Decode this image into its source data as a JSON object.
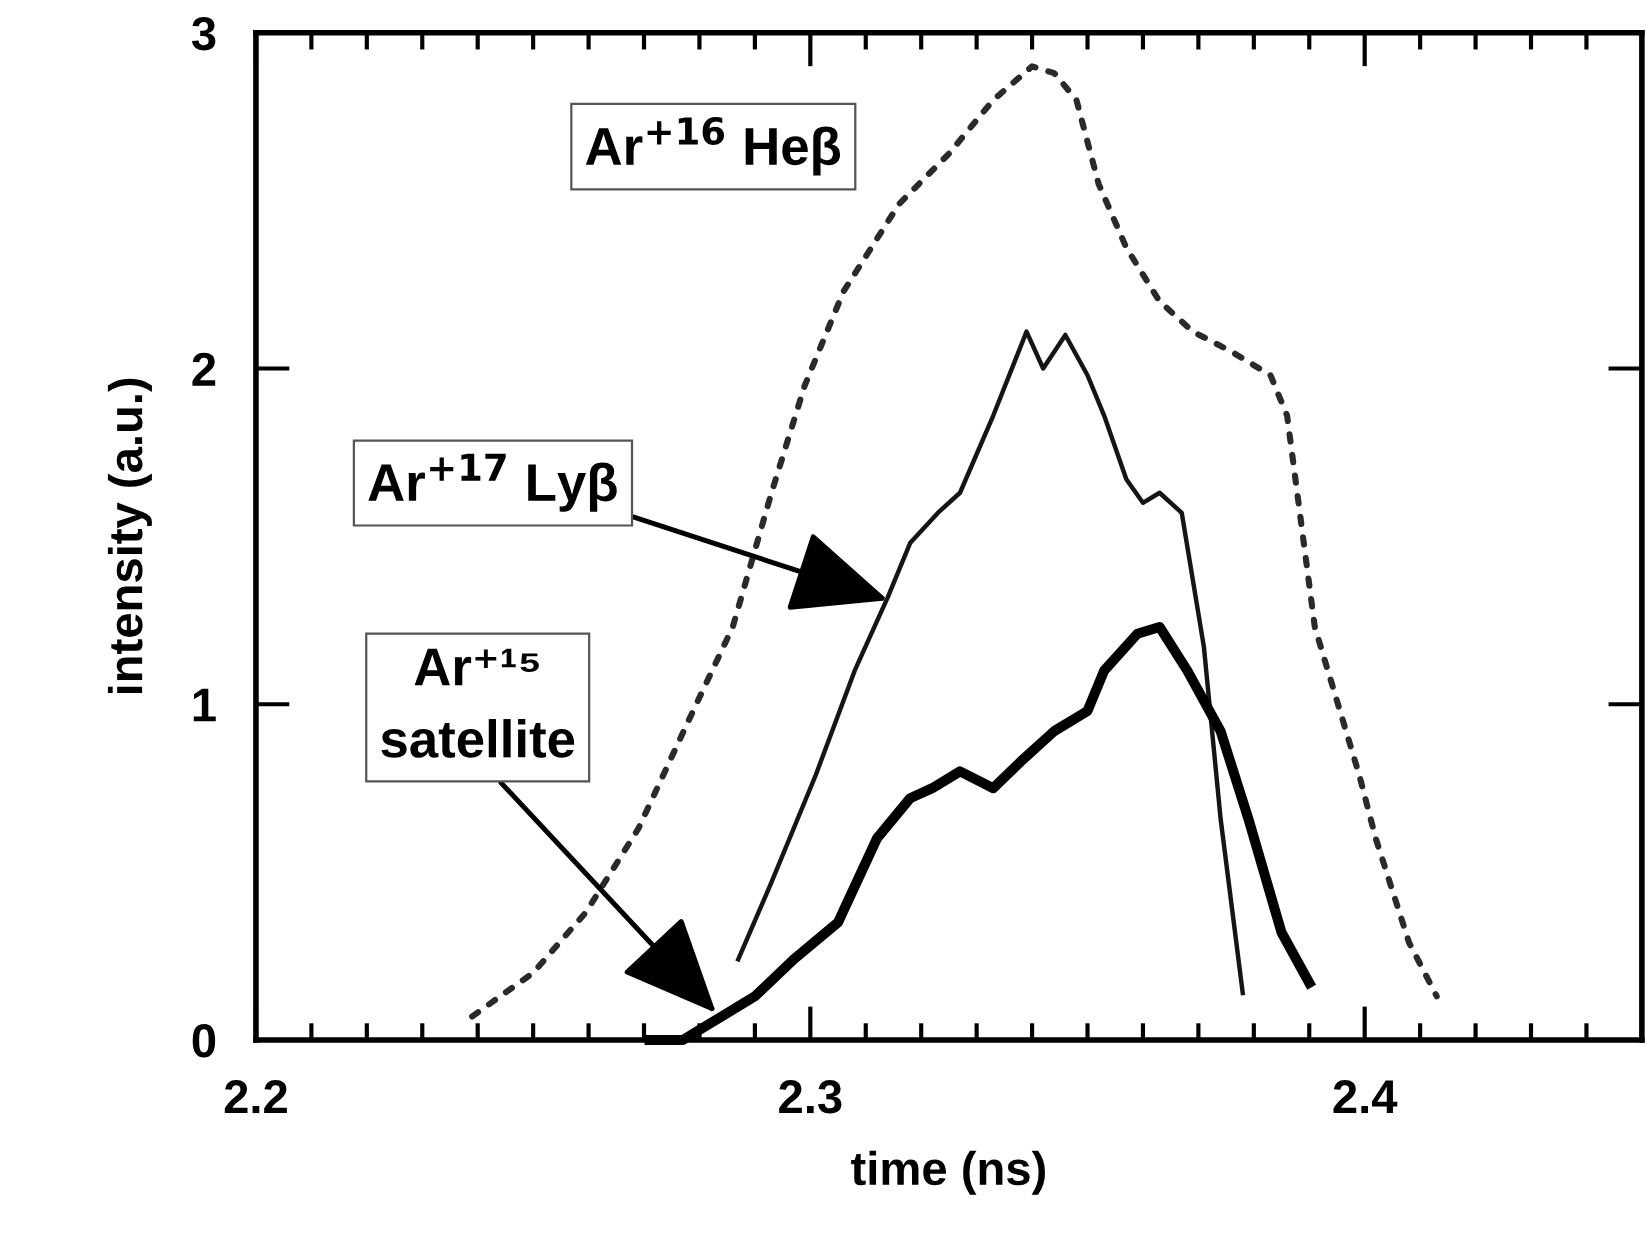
{
  "chart_data": {
    "type": "line",
    "xlabel": "time (ns)",
    "ylabel": "intensity (a.u.)",
    "xlim": [
      2.2,
      2.45
    ],
    "xticks": [
      2.2,
      2.3,
      2.4
    ],
    "ylim": [
      0,
      3
    ],
    "yticks": [
      0,
      1,
      2,
      3
    ],
    "grid": false,
    "legend": false,
    "marker": "none",
    "series": [
      {
        "color": "#2a2a2a",
        "line_style": "dotted",
        "x": [
          2.239,
          2.25,
          2.2595,
          2.269,
          2.278,
          2.286,
          2.293,
          2.299,
          2.306,
          2.316,
          2.325,
          2.333,
          2.34,
          2.344,
          2.348,
          2.352,
          2.357,
          2.363,
          2.369,
          2.376,
          2.383,
          2.386,
          2.391,
          2.399,
          2.402,
          2.408,
          2.413
        ],
        "values": [
          0.07,
          0.2,
          0.38,
          0.63,
          0.95,
          1.23,
          1.63,
          1.95,
          2.23,
          2.49,
          2.64,
          2.8,
          2.9,
          2.88,
          2.8,
          2.55,
          2.36,
          2.2,
          2.11,
          2.05,
          1.98,
          1.86,
          1.23,
          0.79,
          0.6,
          0.29,
          0.13
        ]
      },
      {
        "color": "#151515",
        "line_style": "solid",
        "x": [
          2.287,
          2.293,
          2.301,
          2.308,
          2.314,
          2.318,
          2.323,
          2.327,
          2.333,
          2.339,
          2.342,
          2.346,
          2.35,
          2.353,
          2.357,
          2.36,
          2.363,
          2.367,
          2.371,
          2.374,
          2.378
        ],
        "values": [
          0.24,
          0.47,
          0.79,
          1.1,
          1.32,
          1.48,
          1.57,
          1.63,
          1.86,
          2.11,
          2.0,
          2.1,
          1.98,
          1.86,
          1.67,
          1.6,
          1.63,
          1.57,
          1.17,
          0.66,
          0.14
        ]
      },
      {
        "color": "#000000",
        "line_style": "solid",
        "x": [
          2.271,
          2.277,
          2.284,
          2.29,
          2.297,
          2.305,
          2.312,
          2.318,
          2.322,
          2.327,
          2.333,
          2.338,
          2.344,
          2.35,
          2.353,
          2.359,
          2.363,
          2.368,
          2.374,
          2.379,
          2.385,
          2.39
        ],
        "values": [
          0.0,
          0.0,
          0.07,
          0.13,
          0.24,
          0.35,
          0.6,
          0.72,
          0.75,
          0.8,
          0.75,
          0.83,
          0.92,
          0.98,
          1.1,
          1.21,
          1.23,
          1.1,
          0.92,
          0.66,
          0.32,
          0.17
        ]
      }
    ],
    "annotations": [
      "Ar$^{+16}$ Heβ",
      {
        "text": "Ar$^{+17}$ Lyβ",
        "x": 2.314,
        "y": 1.31
      },
      {
        "text": "Ar⁺¹⁵\nsatellite",
        "x": 2.283,
        "y": 0.08
      }
    ]
  }
}
